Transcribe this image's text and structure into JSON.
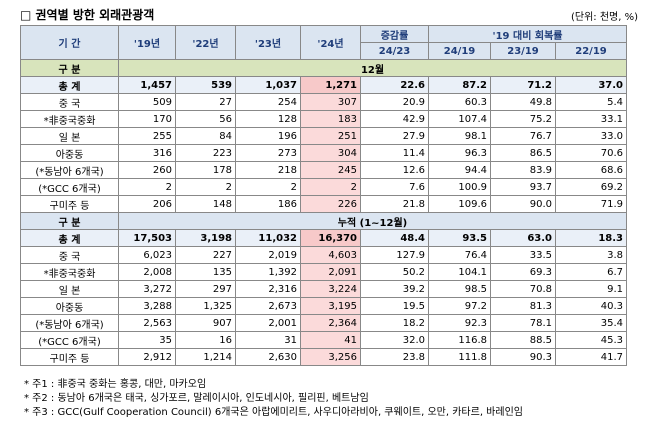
{
  "title": "□ 권역별 방한 외래관광객",
  "unit": "(단위: 천명, %)",
  "header": {
    "period": "기 간",
    "years": [
      "'19년",
      "'22년",
      "'23년",
      "'24년"
    ],
    "change": "증감률",
    "change_sub": "24/23",
    "recovery": "'19 대비 회복률",
    "recovery_sub": [
      "24/19",
      "23/19",
      "22/19"
    ]
  },
  "sections": [
    {
      "label": "구 분",
      "title": "12월",
      "rows": [
        [
          "총 계",
          "1,457",
          "539",
          "1,037",
          "1,271",
          "22.6",
          "87.2",
          "71.2",
          "37.0"
        ],
        [
          "중 국",
          "509",
          "27",
          "254",
          "307",
          "20.9",
          "60.3",
          "49.8",
          "5.4"
        ],
        [
          "*非중국중화",
          "170",
          "56",
          "128",
          "183",
          "42.9",
          "107.4",
          "75.2",
          "33.1"
        ],
        [
          "일 본",
          "255",
          "84",
          "196",
          "251",
          "27.9",
          "98.1",
          "76.7",
          "33.0"
        ],
        [
          "아중동",
          "316",
          "223",
          "273",
          "304",
          "11.4",
          "96.3",
          "86.5",
          "70.6"
        ],
        [
          "(*동남아 6개국)",
          "260",
          "178",
          "218",
          "245",
          "12.6",
          "94.4",
          "83.9",
          "68.6"
        ],
        [
          "(*GCC 6개국)",
          "2",
          "2",
          "2",
          "2",
          "7.6",
          "100.9",
          "93.7",
          "69.2"
        ],
        [
          "구미주 등",
          "206",
          "148",
          "186",
          "226",
          "21.8",
          "109.6",
          "90.0",
          "71.9"
        ]
      ]
    },
    {
      "label": "구 분",
      "title": "누적 (1~12월)",
      "rows": [
        [
          "총 계",
          "17,503",
          "3,198",
          "11,032",
          "16,370",
          "48.4",
          "93.5",
          "63.0",
          "18.3"
        ],
        [
          "중 국",
          "6,023",
          "227",
          "2,019",
          "4,603",
          "127.9",
          "76.4",
          "33.5",
          "3.8"
        ],
        [
          "*非중국중화",
          "2,008",
          "135",
          "1,392",
          "2,091",
          "50.2",
          "104.1",
          "69.3",
          "6.7"
        ],
        [
          "일 본",
          "3,272",
          "297",
          "2,316",
          "3,224",
          "39.2",
          "98.5",
          "70.8",
          "9.1"
        ],
        [
          "아중동",
          "3,288",
          "1,325",
          "2,673",
          "3,195",
          "19.5",
          "97.2",
          "81.3",
          "40.3"
        ],
        [
          "(*동남아 6개국)",
          "2,563",
          "907",
          "2,001",
          "2,364",
          "18.2",
          "92.3",
          "78.1",
          "35.4"
        ],
        [
          "(*GCC 6개국)",
          "35",
          "16",
          "31",
          "41",
          "32.0",
          "116.8",
          "88.5",
          "45.3"
        ],
        [
          "구미주 등",
          "2,912",
          "1,214",
          "2,630",
          "3,256",
          "23.8",
          "111.8",
          "90.3",
          "41.7"
        ]
      ]
    }
  ],
  "notes": [
    "* 주1 : 非중국 중화는 홍콩, 대만, 마카오임",
    "* 주2 : 동남아 6개국은 태국, 싱가포르, 말레이시아, 인도네시아, 필리핀, 베트남임",
    "* 주3 : GCC(Gulf Cooperation Council) 6개국은 아랍에미리트, 사우디아라비아, 쿠웨이트, 오만, 카타르, 바레인임"
  ]
}
